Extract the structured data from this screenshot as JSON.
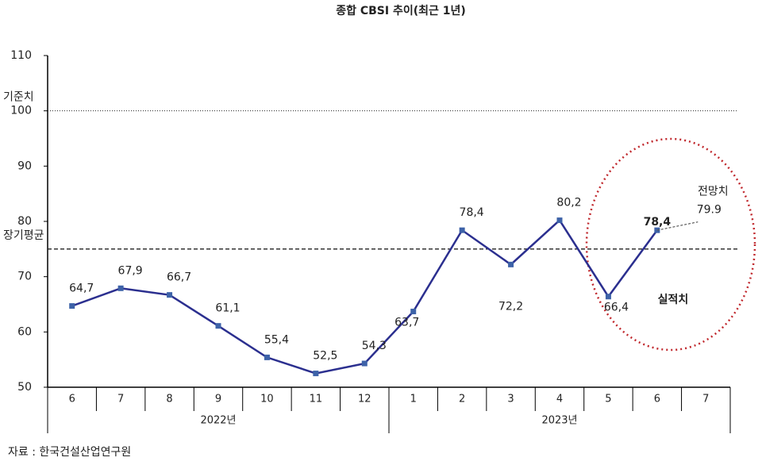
{
  "chart_data": {
    "type": "line",
    "title": "종합 CBSI 추이(최근 1년)",
    "categories": [
      "6",
      "7",
      "8",
      "9",
      "10",
      "11",
      "12",
      "1",
      "2",
      "3",
      "4",
      "5",
      "6",
      "7"
    ],
    "category_groups": [
      {
        "label": "2022년",
        "count": 7
      },
      {
        "label": "2023년",
        "count": 7
      }
    ],
    "series": [
      {
        "name": "실적치",
        "color": "#2b2f8f",
        "marker_color": "#3d62a8",
        "values": [
          64.7,
          67.9,
          66.7,
          61.1,
          55.4,
          52.5,
          54.3,
          63.7,
          78.4,
          72.2,
          80.2,
          66.4,
          78.4,
          null
        ],
        "value_labels": [
          "64,7",
          "67,9",
          "66,7",
          "61,1",
          "55,4",
          "52,5",
          "54,3",
          "63,7",
          "78,4",
          "72,2",
          "80,2",
          "66,4",
          "78,4",
          null
        ]
      },
      {
        "name": "전망치",
        "color": "#555555",
        "values": [
          null,
          null,
          null,
          null,
          null,
          null,
          null,
          null,
          null,
          null,
          null,
          null,
          null,
          79.9
        ]
      }
    ],
    "reference_lines": [
      {
        "label": "기준치",
        "value": 100,
        "style": "dotted"
      },
      {
        "label": "장기평균",
        "value": 75,
        "style": "dashed"
      }
    ],
    "ylim": [
      50,
      110
    ],
    "yticks": [
      50,
      60,
      70,
      80,
      90,
      100,
      110
    ],
    "source": "자료 : 한국건설산업연구원"
  }
}
